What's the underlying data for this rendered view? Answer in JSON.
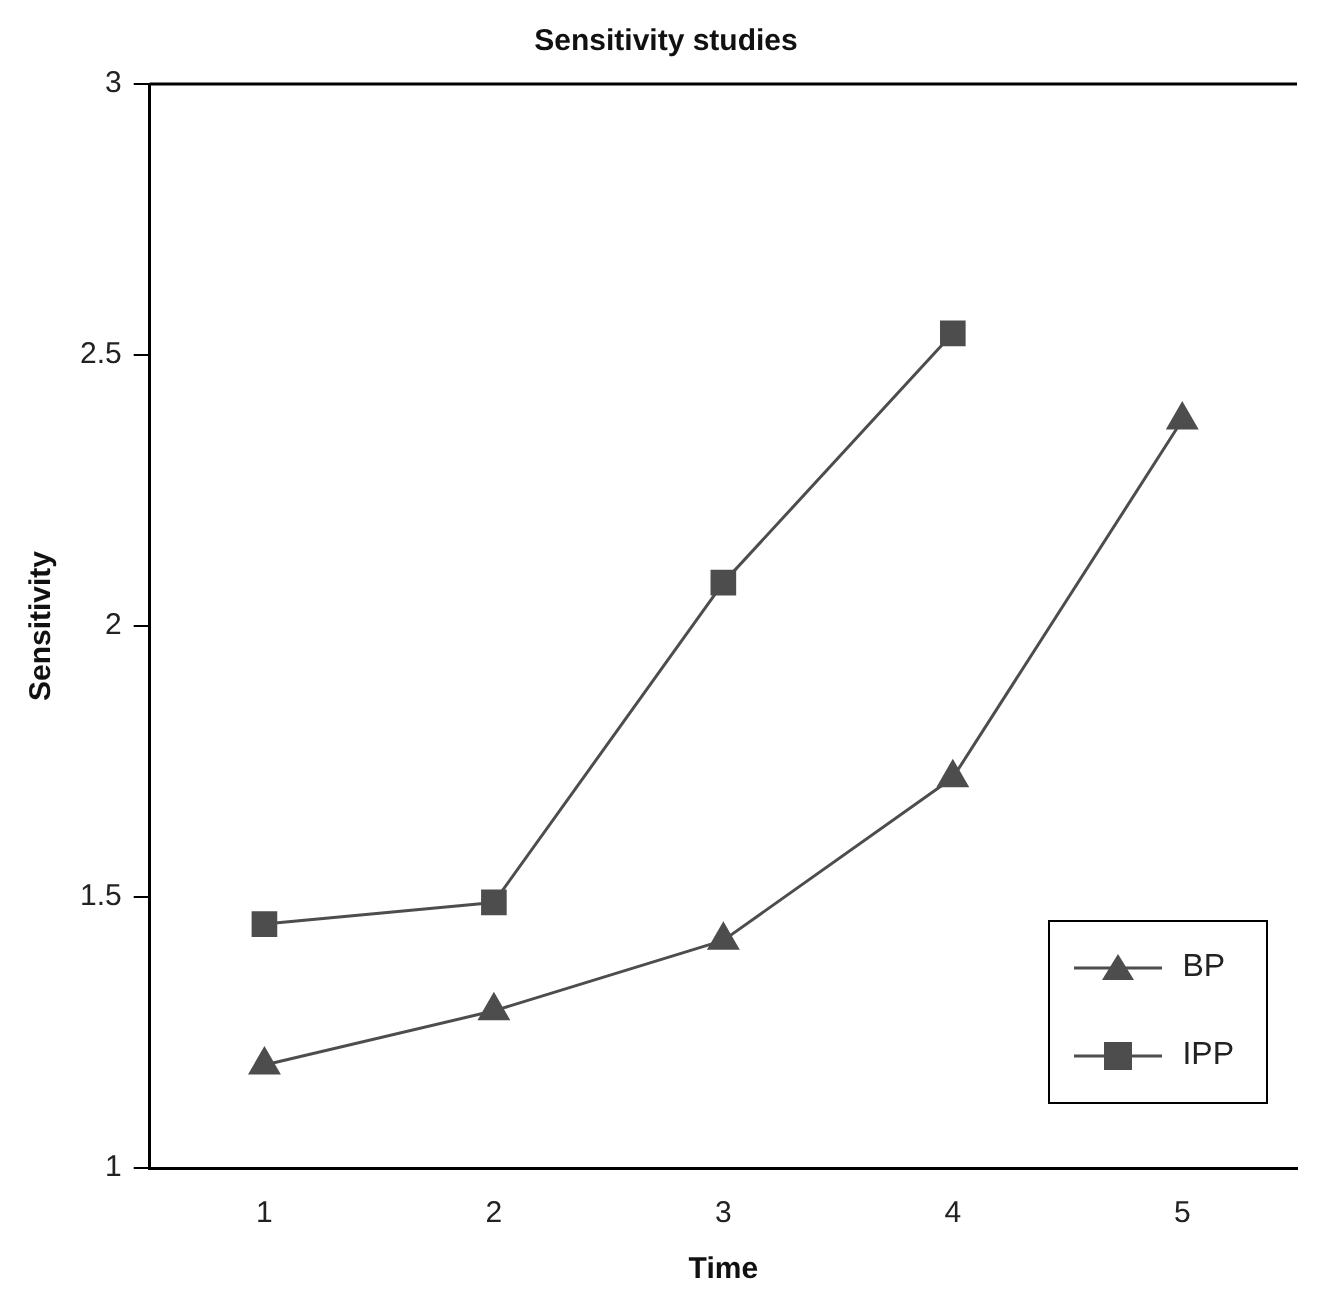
{
  "chart_data": {
    "type": "line",
    "title": "Sensitivity studies",
    "xlabel": "Time",
    "ylabel": "Sensitivity",
    "categories": [
      "1",
      "2",
      "3",
      "4",
      "5"
    ],
    "series": [
      {
        "name": "BP",
        "color": "#4d4d4d",
        "marker": "triangle",
        "values": [
          1.19,
          1.29,
          1.42,
          1.72,
          2.38
        ]
      },
      {
        "name": "IPP",
        "color": "#4d4d4d",
        "marker": "square",
        "values": [
          1.45,
          1.49,
          2.08,
          2.54,
          null
        ]
      }
    ],
    "ylim": [
      1,
      3
    ],
    "yticks": [
      1,
      1.5,
      2,
      2.5,
      3
    ],
    "grid": false,
    "legend": "bottom right",
    "line_style": "solid"
  }
}
